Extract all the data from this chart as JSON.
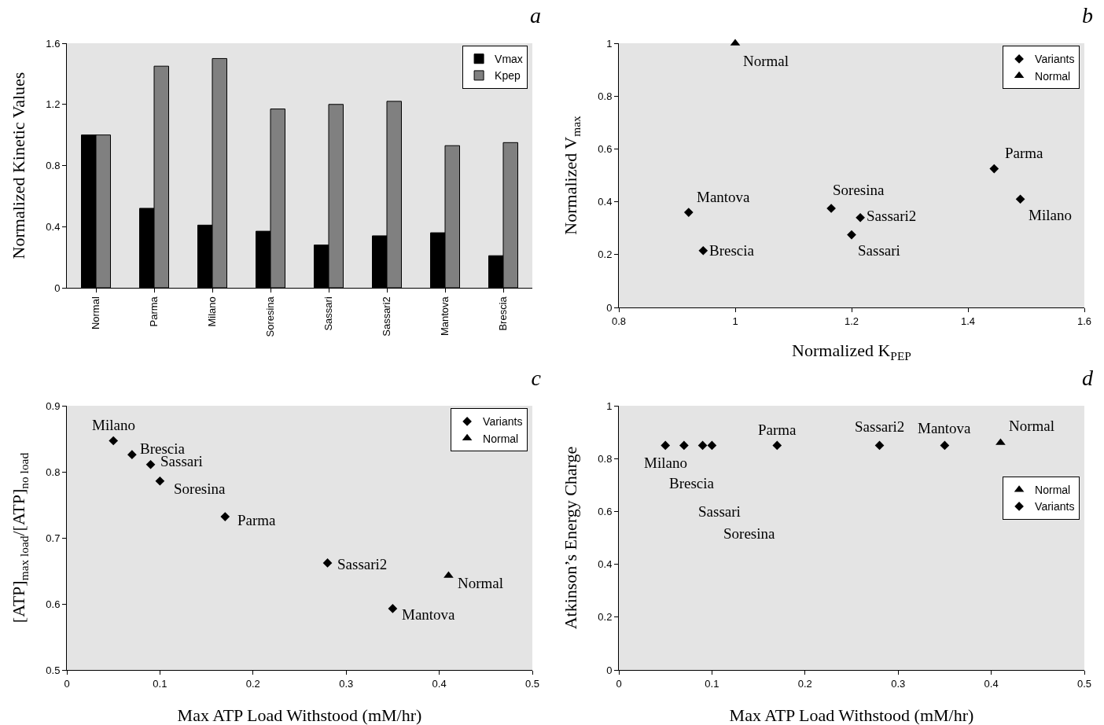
{
  "chart_data": [
    {
      "type": "bar",
      "title": "a",
      "ylabel": "Normalized Kinetic Values",
      "categories": [
        "Normal",
        "Parma",
        "Milano",
        "Soresina",
        "Sassari",
        "Sassari2",
        "Mantova",
        "Brescia"
      ],
      "series": [
        {
          "name": "Vmax",
          "color": "#000000",
          "values": [
            1.0,
            0.52,
            0.41,
            0.37,
            0.28,
            0.34,
            0.36,
            0.21
          ]
        },
        {
          "name": "Kpep",
          "color": "#808080",
          "values": [
            1.0,
            1.45,
            1.5,
            1.17,
            1.2,
            1.22,
            0.93,
            0.95
          ]
        }
      ],
      "ylim": [
        0,
        1.6
      ],
      "yticks": [
        0,
        0.4,
        0.8,
        1.2,
        1.6
      ],
      "grid": false,
      "legend": "top right"
    },
    {
      "type": "scatter",
      "title": "b",
      "xlabel": "Normalized K$_{PEP}$",
      "ylabel": "Normalized V$_{max}$",
      "series": [
        {
          "name": "Variants",
          "color": "#000000",
          "marker": "diamond",
          "x": [
            0.92,
            0.945,
            1.165,
            1.215,
            1.2,
            1.445,
            1.49
          ],
          "values": [
            0.36,
            0.215,
            0.375,
            0.34,
            0.275,
            0.525,
            0.41
          ]
        },
        {
          "name": "Normal",
          "color": "#000000",
          "marker": "triangle",
          "x": [
            1.0
          ],
          "values": [
            1.0
          ]
        }
      ],
      "xlim": [
        0.8,
        1.6
      ],
      "xticks": [
        0.8,
        1,
        1.2,
        1.4,
        1.6
      ],
      "ylim": [
        0,
        1
      ],
      "yticks": [
        0,
        0.2,
        0.4,
        0.6,
        0.8,
        1
      ],
      "grid": false,
      "legend": "top right",
      "annotations": [
        {
          "text": "Normal",
          "x": 1.0,
          "y": 1.0
        },
        {
          "text": "Mantova",
          "x": 0.92,
          "y": 0.36
        },
        {
          "text": "Brescia",
          "x": 0.945,
          "y": 0.215
        },
        {
          "text": "Soresina",
          "x": 1.165,
          "y": 0.375
        },
        {
          "text": "Sassari2",
          "x": 1.215,
          "y": 0.34
        },
        {
          "text": "Sassari",
          "x": 1.2,
          "y": 0.275
        },
        {
          "text": "Parma",
          "x": 1.445,
          "y": 0.525
        },
        {
          "text": "Milano",
          "x": 1.49,
          "y": 0.41
        }
      ]
    },
    {
      "type": "scatter",
      "title": "c",
      "xlabel": "Max ATP Load Withstood (mM/hr)",
      "ylabel": "[ATP]$_{max load}$/[ATP]$_{no load}$",
      "series": [
        {
          "name": "Variants",
          "color": "#000000",
          "marker": "diamond",
          "x": [
            0.05,
            0.07,
            0.09,
            0.1,
            0.17,
            0.28,
            0.35
          ],
          "values": [
            0.847,
            0.826,
            0.811,
            0.786,
            0.732,
            0.662,
            0.593
          ]
        },
        {
          "name": "Normal",
          "color": "#000000",
          "marker": "triangle",
          "x": [
            0.41
          ],
          "values": [
            0.643
          ]
        }
      ],
      "xlim": [
        0,
        0.5
      ],
      "xticks": [
        0,
        0.1,
        0.2,
        0.3,
        0.4,
        0.5
      ],
      "ylim": [
        0.5,
        0.9
      ],
      "yticks": [
        0.5,
        0.6,
        0.7,
        0.8,
        0.9
      ],
      "grid": false,
      "legend": "top right",
      "annotations": [
        {
          "text": "Milano",
          "x": 0.05,
          "y": 0.847
        },
        {
          "text": "Brescia",
          "x": 0.07,
          "y": 0.826
        },
        {
          "text": "Sassari",
          "x": 0.09,
          "y": 0.811
        },
        {
          "text": "Soresina",
          "x": 0.1,
          "y": 0.786
        },
        {
          "text": "Parma",
          "x": 0.17,
          "y": 0.732
        },
        {
          "text": "Sassari2",
          "x": 0.28,
          "y": 0.662
        },
        {
          "text": "Normal",
          "x": 0.41,
          "y": 0.643
        },
        {
          "text": "Mantova",
          "x": 0.35,
          "y": 0.593
        }
      ]
    },
    {
      "type": "scatter",
      "title": "d",
      "xlabel": "Max ATP Load Withstood (mM/hr)",
      "ylabel": "Atkinson’s Energy Charge",
      "series": [
        {
          "name": "Normal",
          "color": "#000000",
          "marker": "triangle",
          "x": [
            0.41
          ],
          "values": [
            0.86
          ]
        },
        {
          "name": "Variants",
          "color": "#000000",
          "marker": "diamond",
          "x": [
            0.05,
            0.07,
            0.09,
            0.1,
            0.17,
            0.28,
            0.35
          ],
          "values": [
            0.85,
            0.85,
            0.85,
            0.85,
            0.85,
            0.85,
            0.85
          ]
        }
      ],
      "xlim": [
        0,
        0.5
      ],
      "xticks": [
        0,
        0.1,
        0.2,
        0.3,
        0.4,
        0.5
      ],
      "ylim": [
        0,
        1
      ],
      "yticks": [
        0,
        0.2,
        0.4,
        0.6,
        0.8,
        1
      ],
      "grid": false,
      "legend": "right",
      "annotations": [
        {
          "text": "Milano",
          "x": 0.05,
          "y": 0.85
        },
        {
          "text": "Brescia",
          "x": 0.07,
          "y": 0.85
        },
        "Sassari",
        "Soresina",
        {
          "text": "Parma",
          "x": 0.17,
          "y": 0.85
        },
        {
          "text": "Sassari2",
          "x": 0.28,
          "y": 0.85
        },
        {
          "text": "Mantova",
          "x": 0.35,
          "y": 0.85
        },
        {
          "text": "Normal",
          "x": 0.41,
          "y": 0.86
        }
      ]
    }
  ]
}
